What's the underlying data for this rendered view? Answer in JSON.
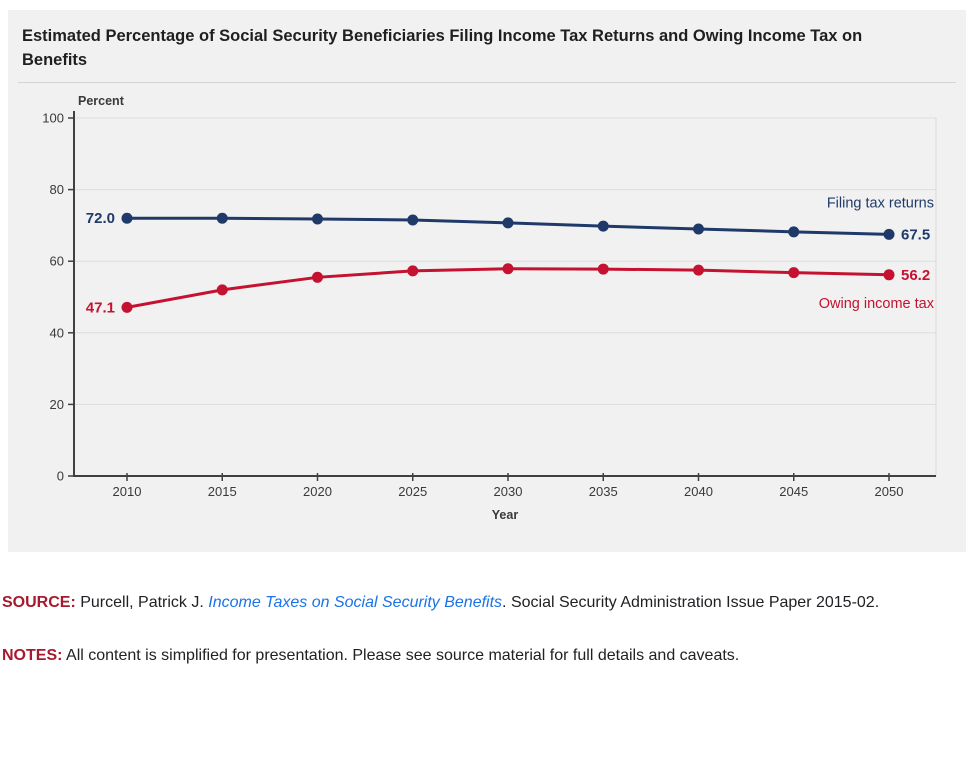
{
  "page": {
    "title": "Estimated Percentage of Social Security Beneficiaries Filing Income Tax Returns and Owing Income Tax on Benefits"
  },
  "chart_data": {
    "type": "line",
    "title": "Estimated Percentage of Social Security Beneficiaries Filing Income Tax Returns and Owing Income Tax on Benefits",
    "x": [
      2010,
      2015,
      2020,
      2025,
      2030,
      2035,
      2040,
      2045,
      2050
    ],
    "xlabel": "Year",
    "ylabel": "Percent",
    "ylim": [
      0,
      100
    ],
    "yticks": [
      0,
      20,
      40,
      60,
      80,
      100
    ],
    "grid": true,
    "legend_position": "inline-right",
    "series": [
      {
        "name": "Filing tax returns",
        "color": "#1f3a68",
        "values": [
          72.0,
          72.0,
          71.8,
          71.5,
          70.7,
          69.8,
          69.0,
          68.2,
          67.5
        ],
        "first_label": "72.0",
        "last_label": "67.5",
        "name_position": "above"
      },
      {
        "name": "Owing income tax",
        "color": "#c41230",
        "values": [
          47.1,
          52.0,
          55.5,
          57.3,
          57.9,
          57.8,
          57.5,
          56.8,
          56.2
        ],
        "first_label": "47.1",
        "last_label": "56.2",
        "name_position": "below"
      }
    ]
  },
  "source": {
    "label": "SOURCE:",
    "pre": " Purcell, Patrick J. ",
    "link": "Income Taxes on Social Security Benefits",
    "post": ". Social Security Administration Issue Paper 2015-02."
  },
  "notes": {
    "label": "NOTES:",
    "text": " All content is simplified for presentation. Please see source material for full details and caveats."
  },
  "colors": {
    "panel_bg": "#f1f1f1",
    "divider": "#d4d4d4",
    "grid": "#dedede",
    "plot_border": "#d9d9d9",
    "axis": "#404040",
    "tick_text": "#3a3a3a",
    "title_text": "#1f1f1f",
    "body_text": "#202124",
    "source_label_red": "#a6192e",
    "link_blue": "#1a73e8",
    "filing_blue": "#1f3a68",
    "owing_red": "#c41230"
  }
}
